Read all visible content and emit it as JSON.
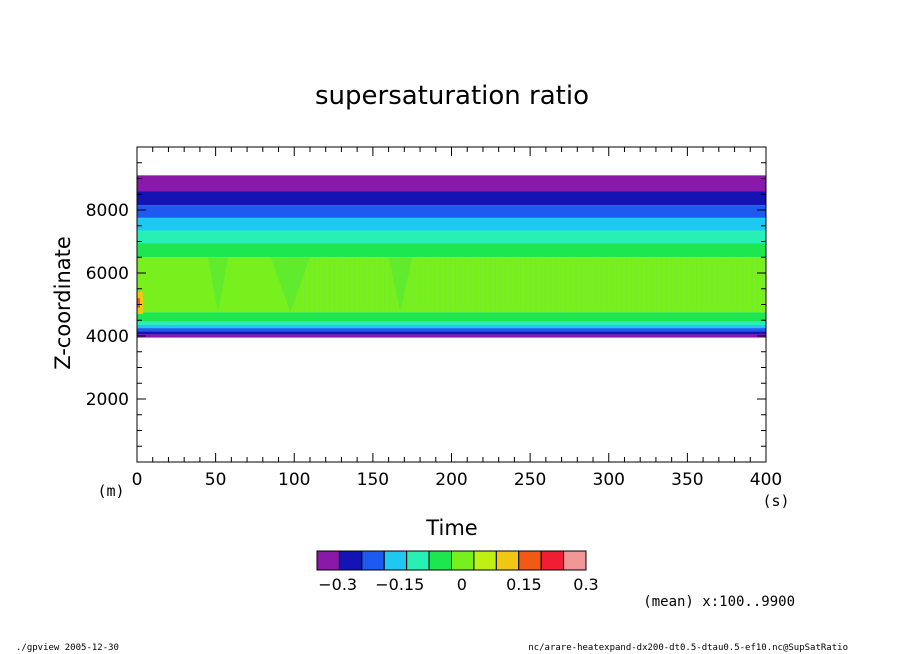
{
  "chart_data": {
    "type": "heatmap",
    "title": "supersaturation ratio",
    "xlabel": "Time",
    "ylabel": "Z-coordinate",
    "x_unit": "(s)",
    "y_unit": "(m)",
    "xlim": [
      0,
      400
    ],
    "ylim": [
      0,
      10000
    ],
    "x_ticks": [
      "0",
      "50",
      "100",
      "150",
      "200",
      "250",
      "300",
      "350",
      "400"
    ],
    "y_ticks": [
      "2000",
      "4000",
      "6000",
      "8000"
    ],
    "colorbar": {
      "levels": [
        -0.35,
        -0.3,
        -0.25,
        -0.2,
        -0.15,
        -0.1,
        -0.05,
        0,
        0.05,
        0.1,
        0.15,
        0.2,
        0.25,
        0.3
      ],
      "labels": [
        "−0.3",
        "−0.15",
        "0",
        "0.15",
        "0.3"
      ],
      "colors": [
        "#8a18a8",
        "#1414b4",
        "#1e5aef",
        "#1ec8f0",
        "#28f0b4",
        "#1ee650",
        "#78f01e",
        "#bef014",
        "#f0c814",
        "#f05a14",
        "#f01e32",
        "#f09696"
      ]
    },
    "bands": [
      {
        "z": [
          9100,
          9000
        ],
        "value": -0.32,
        "color": "#8a18a8"
      },
      {
        "z": [
          9000,
          8600
        ],
        "value": -0.32,
        "color": "#8a18a8"
      },
      {
        "z": [
          8600,
          8150
        ],
        "value": -0.27,
        "color": "#1414b4"
      },
      {
        "z": [
          8150,
          7750
        ],
        "value": -0.22,
        "color": "#1e5aef"
      },
      {
        "z": [
          7750,
          7350
        ],
        "value": -0.17,
        "color": "#1ec8f0"
      },
      {
        "z": [
          7350,
          6950
        ],
        "value": -0.12,
        "color": "#28f0b4"
      },
      {
        "z": [
          6950,
          6500
        ],
        "value": -0.02,
        "color": "#1ee650"
      },
      {
        "z": [
          6500,
          4750
        ],
        "value": 0.02,
        "color": "#78f01e"
      },
      {
        "z": [
          4750,
          4450
        ],
        "value": -0.02,
        "color": "#1ee650"
      },
      {
        "z": [
          4450,
          4350
        ],
        "value": -0.12,
        "color": "#28f0b4"
      },
      {
        "z": [
          4350,
          4250
        ],
        "value": -0.17,
        "color": "#1ec8f0"
      },
      {
        "z": [
          4250,
          4150
        ],
        "value": -0.22,
        "color": "#1e5aef"
      },
      {
        "z": [
          4150,
          4050
        ],
        "value": -0.27,
        "color": "#1414b4"
      },
      {
        "z": [
          4050,
          3950
        ],
        "value": -0.32,
        "color": "#8a18a8"
      }
    ],
    "note": "(mean) x:100..9900"
  },
  "footer": {
    "left": "./gpview  2005-12-30",
    "right": "nc/arare-heatexpand-dx200-dt0.5-dtau0.5-ef10.nc@SupSatRatio"
  }
}
